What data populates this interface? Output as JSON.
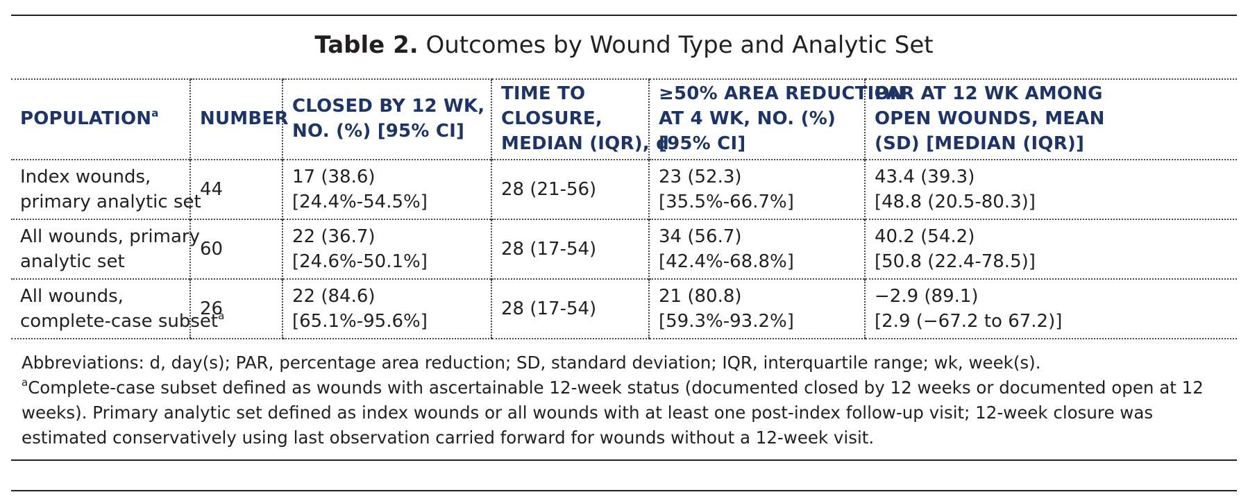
{
  "title": {
    "label": "Table 2.",
    "text": "Outcomes by Wound Type and Analytic Set"
  },
  "table": {
    "headers": [
      {
        "lines": [
          "POPULATION"
        ],
        "sup": "a"
      },
      {
        "lines": [
          "NUMBER"
        ]
      },
      {
        "lines": [
          "CLOSED BY 12 WK,",
          "NO. (%) [95% CI]"
        ]
      },
      {
        "lines": [
          "TIME TO",
          "CLOSURE,",
          "MEDIAN (IQR), d"
        ]
      },
      {
        "lines": [
          "≥50% AREA REDUCTION",
          "AT 4 WK, NO. (%)",
          "[95% CI]"
        ]
      },
      {
        "lines": [
          "PAR AT 12 WK AMONG",
          "OPEN WOUNDS, MEAN",
          "(SD) [MEDIAN (IQR)]"
        ]
      }
    ],
    "rows": [
      {
        "population": [
          "Index wounds,",
          "primary analytic set"
        ],
        "population_sup": "",
        "number": "44",
        "closed": "17 (38.6) [24.4%-54.5%]",
        "time": "28 (21-56)",
        "reduction": "23 (52.3) [35.5%-66.7%]",
        "par": [
          "43.4 (39.3)",
          "[48.8 (20.5-80.3)]"
        ]
      },
      {
        "population": [
          "All wounds, primary",
          "analytic set"
        ],
        "population_sup": "",
        "number": "60",
        "closed": "22 (36.7) [24.6%-50.1%]",
        "time": "28 (17-54)",
        "reduction": "34 (56.7) [42.4%-68.8%]",
        "par": [
          "40.2 (54.2)",
          "[50.8 (22.4-78.5)]"
        ]
      },
      {
        "population": [
          "All wounds,",
          "complete-case subset"
        ],
        "population_sup": "a",
        "number": "26",
        "closed": "22 (84.6) [65.1%-95.6%]",
        "time": "28 (17-54)",
        "reduction": "21 (80.8) [59.3%-93.2%]",
        "par": [
          "−2.9 (89.1)",
          "[2.9 (−67.2 to 67.2)]"
        ]
      }
    ]
  },
  "footnotes": {
    "abbreviations": "Abbreviations: d, day(s); PAR, percentage area reduction; SD, standard deviation; IQR, interquartile range; wk, week(s).",
    "note_marker": "a",
    "note": "Complete-case subset defined as wounds with ascertainable 12-week status (documented closed by 12 weeks or documented open at 12 weeks). Primary analytic set defined as index wounds or all wounds with at least one post-index follow-up visit; 12-week closure was estimated conservatively using last observation carried forward for wounds without a 12-week visit."
  },
  "colors": {
    "header_text": "#1f3466",
    "body_text": "#231f20"
  }
}
